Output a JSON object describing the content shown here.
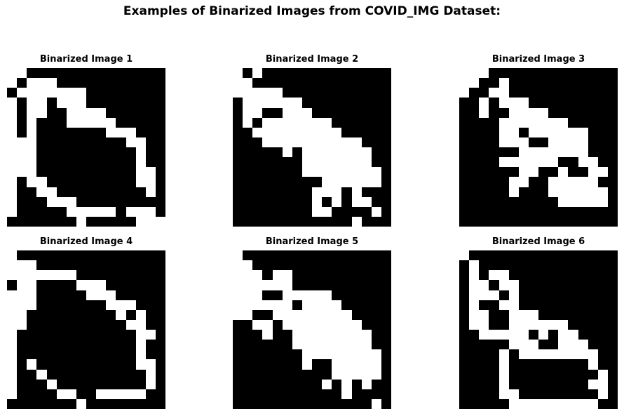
{
  "figure": {
    "title": "Examples of Binarized Images from COVID_IMG Dataset:"
  },
  "images": [
    {
      "title": "Binarized Image 1",
      "grid": [
        "0011111111111111",
        "0100011111111111",
        "1000000011111111",
        "0100100011111111",
        "0100110000111111",
        "0101110000011111",
        "0101111111000111",
        "0001111111110011",
        "0001111111111011",
        "0001111111111011",
        "0001111111111001",
        "0100111111111001",
        "0110011111111101",
        "0111000111111111",
        "0111110000010001",
        "1111111011111000"
      ]
    },
    {
      "title": "Binarized Image 2",
      "grid": [
        "0101111111111111",
        "0011111111111111",
        "0000011111111111",
        "1000000111111111",
        "1001100011111111",
        "1010000000111111",
        "1100000000011111",
        "1110000000000111",
        "1111101000000011",
        "1111111000000011",
        "1111111000000001",
        "1111111110000001",
        "1111111100010111",
        "1111111101010011",
        "1111111100111101",
        "1111111111110111"
      ]
    },
    {
      "title": "Binarized Image 3",
      "grid": [
        "0001111111111111",
        "0011011111111111",
        "0110011111111111",
        "1101000111111111",
        "1101100001111111",
        "1111000000011111",
        "1111001000000111",
        "1111000110000111",
        "1111110000000111",
        "1111000000110011",
        "1111110011011001",
        "1111100110000011",
        "1111101110000001",
        "1111111111000001",
        "1111111111111111",
        "1111111111111111"
      ]
    },
    {
      "title": "Binarized Image 4",
      "grid": [
        "0111111111111111",
        "0001111111111111",
        "0000000111111111",
        "1001111000111111",
        "0001111100011111",
        "0001111111000111",
        "0011111111101011",
        "0011111111110011",
        "0111111111111001",
        "0111111111111011",
        "0111111111111011",
        "0101111111111001",
        "0110111111111101",
        "0111011111111101",
        "0111100110000011",
        "1111111011111111"
      ]
    },
    {
      "title": "Binarized Image 5",
      "grid": [
        "0111111111111111",
        "0011111111111111",
        "0001001111111111",
        "0000001111111111",
        "0001100000111111",
        "0000001000011111",
        "0011000000001111",
        "1100100000000111",
        "1110110000000011",
        "1111110000000011",
        "1111111000000001",
        "1111111011000001",
        "1111111111000001",
        "1111111110101011",
        "1111111111101111",
        "1111111111111101"
      ]
    },
    {
      "title": "Binarized Image 6",
      "grid": [
        "0111111111111111",
        "1011111111111111",
        "1010011111111111",
        "1001001111111111",
        "1000101111111111",
        "1011001111111111",
        "1001100011111111",
        "1001100000011111",
        "1100000101001111",
        "1111100011000111",
        "1111010000000011",
        "1111011111111011",
        "1111011111111101",
        "1111011111111001",
        "1111001111111101",
        "1111100000000011"
      ]
    }
  ]
}
